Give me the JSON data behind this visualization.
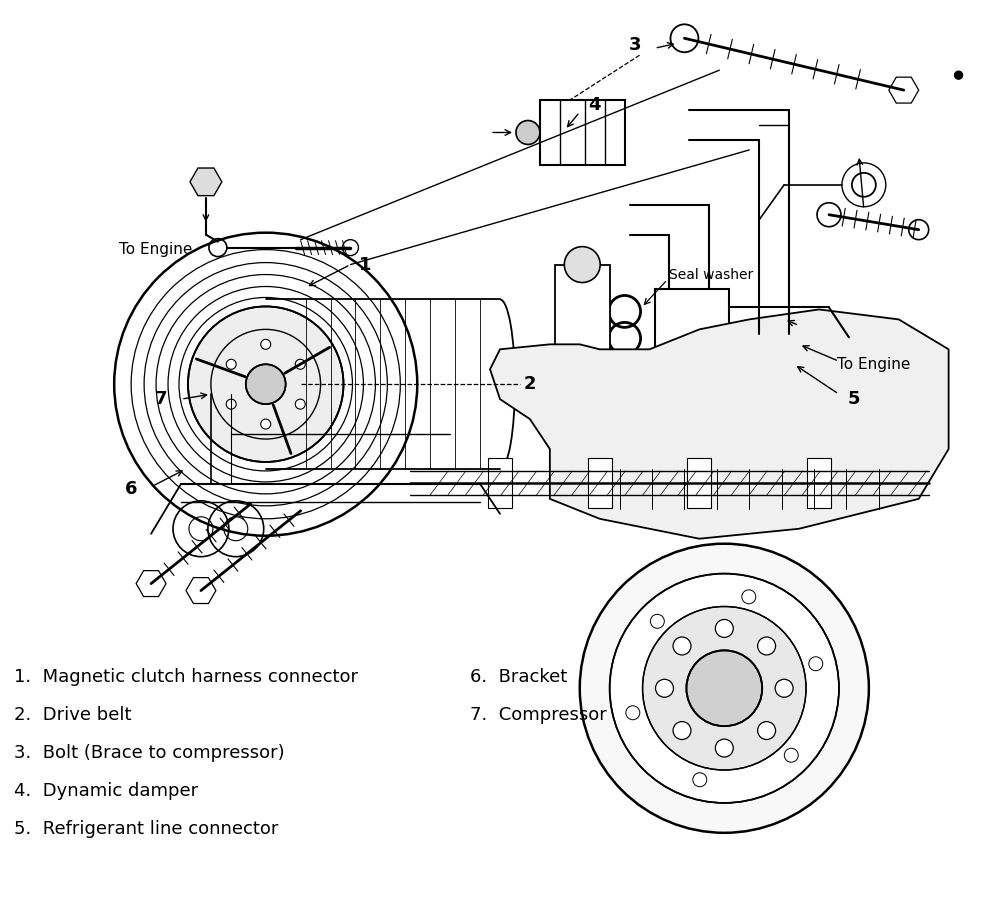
{
  "bg_color": "#ffffff",
  "fig_width": 10.0,
  "fig_height": 8.99,
  "line_color": "#000000",
  "legend_left": [
    "1.  Magnetic clutch harness connector",
    "2.  Drive belt",
    "3.  Bolt (Brace to compressor)",
    "4.  Dynamic damper",
    "5.  Refrigerant line connector"
  ],
  "legend_right": [
    "6.  Bracket",
    "7.  Compressor"
  ],
  "label_fontsize": 13,
  "legend_fontsize": 13
}
